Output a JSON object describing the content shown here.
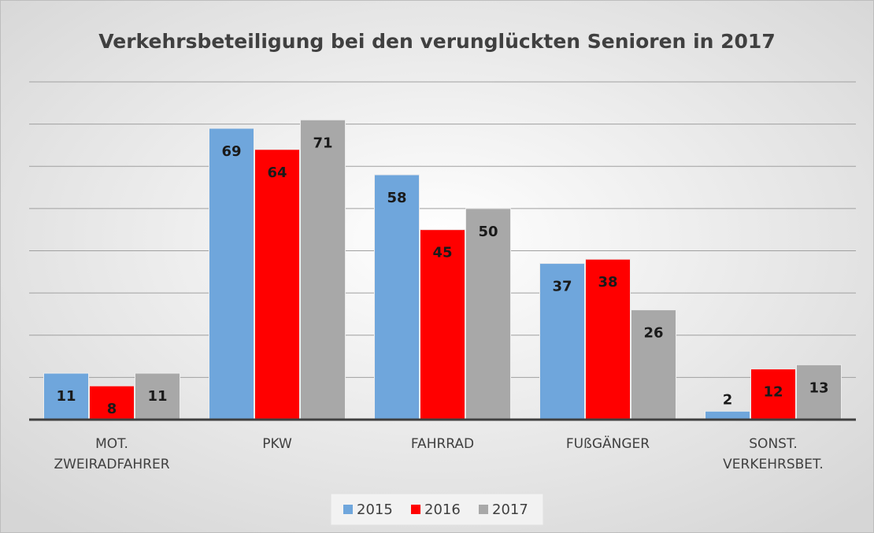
{
  "chart_data": {
    "type": "bar",
    "title": "Verkehrsbeteiligung bei den verunglückten Senioren in 2017",
    "categories": [
      "MOT.\nZWEIRADFAHRER",
      "PKW",
      "FAHRRAD",
      "FUßGÄNGER",
      "SONST.\nVERKEHRSBET."
    ],
    "series": [
      {
        "name": "2015",
        "color": "#6fa6dc",
        "values": [
          11,
          69,
          58,
          37,
          2
        ]
      },
      {
        "name": "2016",
        "color": "#ff0000",
        "values": [
          8,
          64,
          45,
          38,
          12
        ]
      },
      {
        "name": "2017",
        "color": "#a8a8a8",
        "values": [
          11,
          71,
          50,
          26,
          13
        ]
      }
    ],
    "ylim": [
      0,
      80
    ],
    "yticks": [
      0,
      10,
      20,
      30,
      40,
      50,
      60,
      70,
      80
    ],
    "grid": true,
    "legend": "bottom"
  }
}
